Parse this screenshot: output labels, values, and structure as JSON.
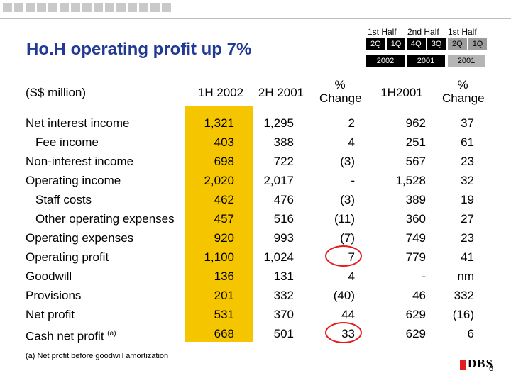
{
  "header": {
    "col_groups": [
      "1st Half",
      "2nd Half",
      "1st Half"
    ],
    "tabs_a": [
      "2Q",
      "1Q"
    ],
    "tabs_b": [
      "4Q",
      "3Q"
    ],
    "tabs_c": [
      "2Q",
      "1Q"
    ],
    "years": [
      "2002",
      "2001",
      "2001"
    ]
  },
  "title": "Ho.H operating profit up 7%",
  "units_label": "(S$ million)",
  "columns": [
    "1H 2002",
    "2H 2001",
    "% Change",
    "1H2001",
    "% Change"
  ],
  "rows": [
    {
      "label": "Net interest income",
      "sub": false,
      "v": [
        "1,321",
        "1,295",
        "2",
        "962",
        "37"
      ]
    },
    {
      "label": "Fee income",
      "sub": true,
      "v": [
        "403",
        "388",
        "4",
        "251",
        "61"
      ]
    },
    {
      "label": "Non-interest income",
      "sub": false,
      "v": [
        "698",
        "722",
        "(3)",
        "567",
        "23"
      ]
    },
    {
      "label": "Operating income",
      "sub": false,
      "v": [
        "2,020",
        "2,017",
        "-",
        "1,528",
        "32"
      ]
    },
    {
      "label": "Staff costs",
      "sub": true,
      "v": [
        "462",
        "476",
        "(3)",
        "389",
        "19"
      ]
    },
    {
      "label": "Other operating expenses",
      "sub": true,
      "v": [
        "457",
        "516",
        "(11)",
        "360",
        "27"
      ]
    },
    {
      "label": "Operating expenses",
      "sub": false,
      "v": [
        "920",
        "993",
        "(7)",
        "749",
        "23"
      ]
    },
    {
      "label": "Operating profit",
      "sub": false,
      "v": [
        "1,100",
        "1,024",
        "7",
        "779",
        "41"
      ]
    },
    {
      "label": "Goodwill",
      "sub": false,
      "v": [
        "136",
        "131",
        "4",
        "-",
        "nm"
      ]
    },
    {
      "label": "Provisions",
      "sub": false,
      "v": [
        "201",
        "332",
        "(40)",
        "46",
        "332"
      ]
    },
    {
      "label": "Net profit",
      "sub": false,
      "v": [
        "531",
        "370",
        "44",
        "629",
        "(16)"
      ]
    },
    {
      "label": "Cash net profit",
      "sup": "(a)",
      "sub": false,
      "v": [
        "668",
        "501",
        "33",
        "629",
        "6"
      ]
    }
  ],
  "footnote": "(a) Net profit before goodwill amortization",
  "logo_text": "DBS",
  "page_number": "6",
  "colors": {
    "title": "#233a94",
    "highlight": "#f5c500",
    "circle": "#e31d1d"
  }
}
